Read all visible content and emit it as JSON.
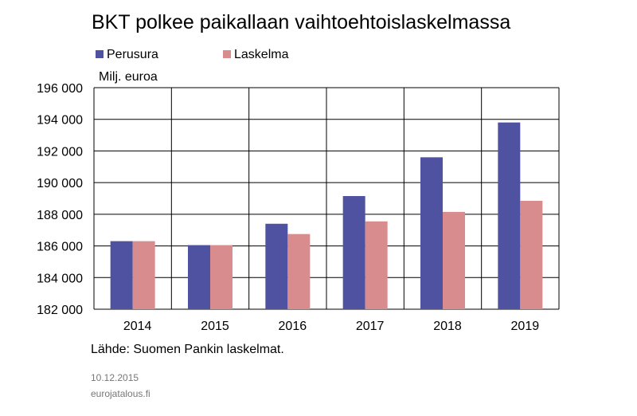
{
  "chart_data": {
    "type": "bar",
    "title": "BKT polkee paikallaan vaihtoehtoislaskelmassa",
    "ylabel": "Milj. euroa",
    "categories": [
      "2014",
      "2015",
      "2016",
      "2017",
      "2018",
      "2019"
    ],
    "series": [
      {
        "name": "Perusura",
        "color": "#4f52a0",
        "values": [
          186300,
          186050,
          187400,
          189150,
          191600,
          193800
        ]
      },
      {
        "name": "Laskelma",
        "color": "#d98c8e",
        "values": [
          186300,
          186050,
          186750,
          187550,
          188150,
          188850
        ]
      }
    ],
    "ylim": [
      182000,
      196000
    ],
    "yticks": [
      182000,
      184000,
      186000,
      188000,
      190000,
      192000,
      194000,
      196000
    ],
    "ytick_labels": [
      "182 000",
      "184 000",
      "186 000",
      "188 000",
      "190 000",
      "192 000",
      "194 000",
      "196 000"
    ],
    "grid": true,
    "legend": "top-left"
  },
  "source": "Lähde: Suomen Pankin laskelmat.",
  "date": "10.12.2015",
  "site": "eurojatalous.fi"
}
